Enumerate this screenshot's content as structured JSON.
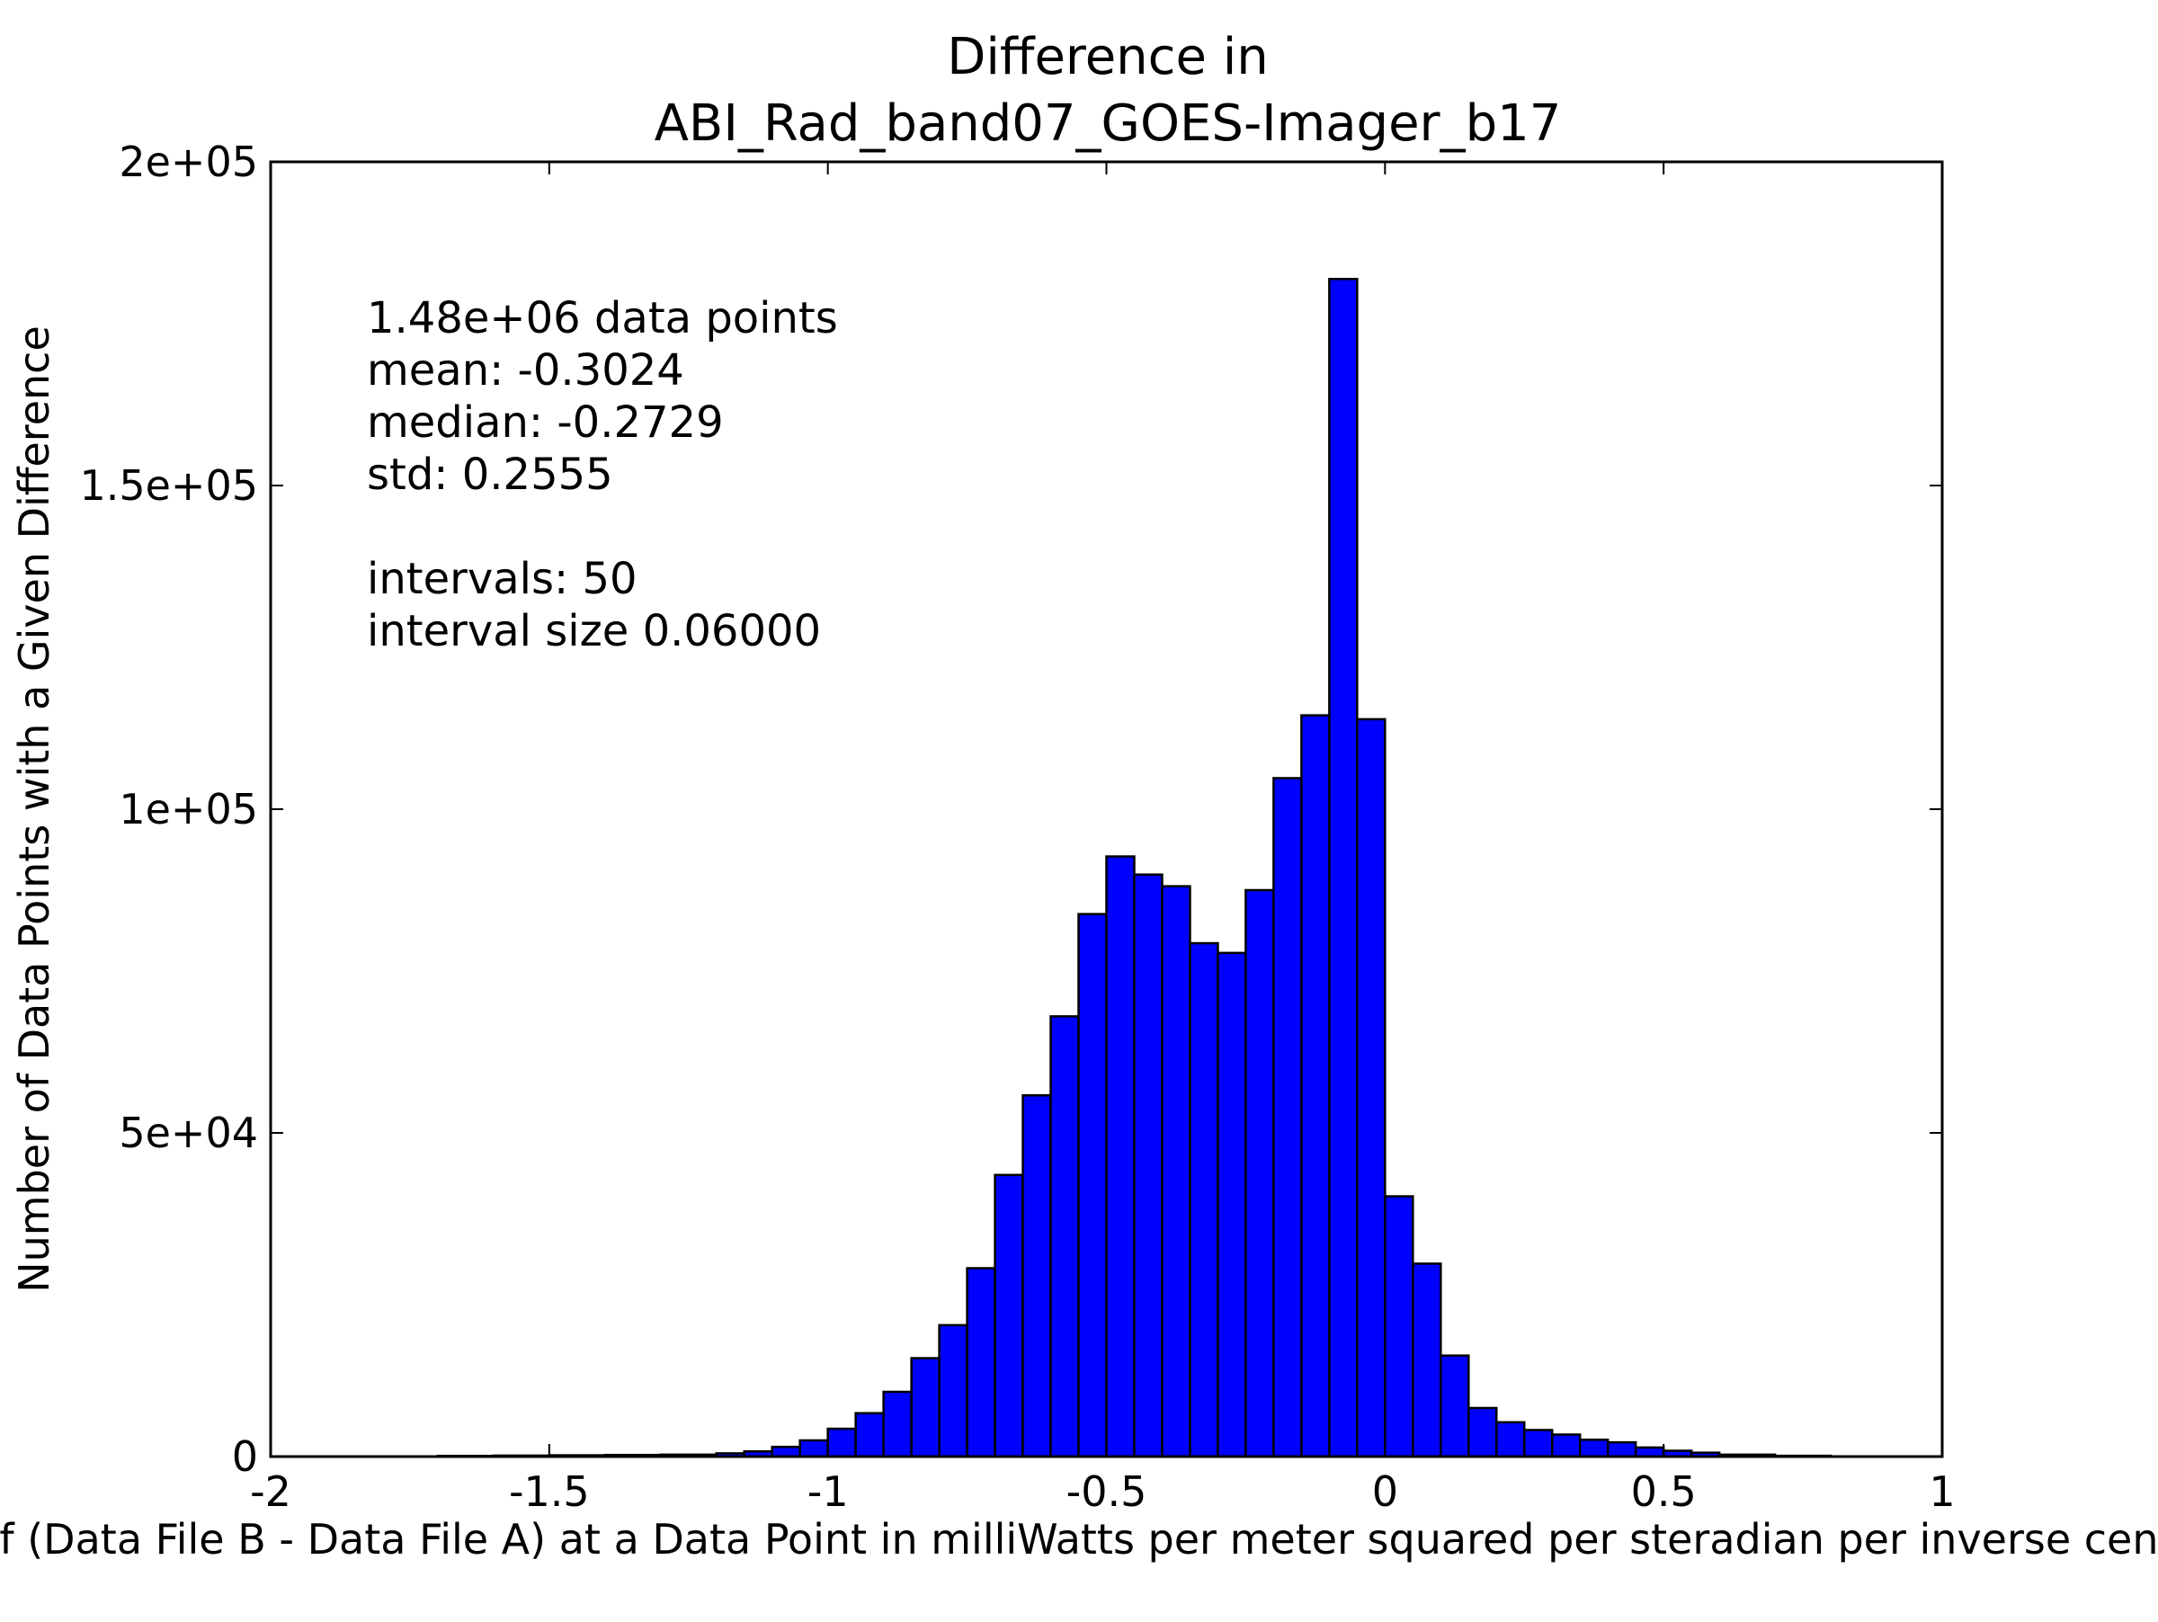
{
  "chart_data": {
    "type": "bar",
    "title_lines": [
      "Difference in",
      "ABI_Rad_band07_GOES-Imager_b17"
    ],
    "xlabel": "Value of (Data File B - Data File A) at a Data Point in milliWatts per meter squared per steradian per inverse centimeter",
    "ylabel": "Number of Data Points with a Given Difference",
    "xlim": [
      -2,
      1
    ],
    "ylim": [
      0,
      200000
    ],
    "x_ticks": [
      -2,
      -1.5,
      -1,
      -0.5,
      0,
      0.5,
      1
    ],
    "x_tick_labels": [
      "-2",
      "-1.5",
      "-1",
      "-0.5",
      "0",
      "0.5",
      "1"
    ],
    "y_ticks": [
      0,
      50000,
      100000,
      150000,
      200000
    ],
    "y_tick_labels": [
      "0",
      "5e+04",
      "1e+05",
      "1.5e+05",
      "2e+05"
    ],
    "annotation_lines": [
      "1.48e+06 data points",
      "mean: -0.3024",
      "median: -0.2729",
      "std: 0.2555",
      "",
      "intervals: 50",
      "interval size 0.06000"
    ],
    "bar_color": "#0000ff",
    "edge_color": "#000000",
    "bins": [
      {
        "start": -1.7,
        "end": -1.6,
        "value": 100
      },
      {
        "start": -1.6,
        "end": -1.5,
        "value": 150
      },
      {
        "start": -1.5,
        "end": -1.4,
        "value": 200
      },
      {
        "start": -1.4,
        "end": -1.3,
        "value": 250
      },
      {
        "start": -1.3,
        "end": -1.2,
        "value": 300
      },
      {
        "start": -1.2,
        "end": -1.15,
        "value": 500
      },
      {
        "start": -1.15,
        "end": -1.1,
        "value": 800
      },
      {
        "start": -1.1,
        "end": -1.05,
        "value": 1500
      },
      {
        "start": -1.05,
        "end": -1.0,
        "value": 2500
      },
      {
        "start": -1.0,
        "end": -0.95,
        "value": 4300
      },
      {
        "start": -0.95,
        "end": -0.9,
        "value": 6700
      },
      {
        "start": -0.9,
        "end": -0.85,
        "value": 10000
      },
      {
        "start": -0.85,
        "end": -0.8,
        "value": 15200
      },
      {
        "start": -0.8,
        "end": -0.75,
        "value": 20300
      },
      {
        "start": -0.75,
        "end": -0.7,
        "value": 29100
      },
      {
        "start": -0.7,
        "end": -0.65,
        "value": 43500
      },
      {
        "start": -0.65,
        "end": -0.6,
        "value": 55800
      },
      {
        "start": -0.6,
        "end": -0.55,
        "value": 68000
      },
      {
        "start": -0.55,
        "end": -0.5,
        "value": 83800
      },
      {
        "start": -0.5,
        "end": -0.45,
        "value": 92700
      },
      {
        "start": -0.45,
        "end": -0.4,
        "value": 89900
      },
      {
        "start": -0.4,
        "end": -0.35,
        "value": 88100
      },
      {
        "start": -0.35,
        "end": -0.3,
        "value": 79300
      },
      {
        "start": -0.3,
        "end": -0.25,
        "value": 77800
      },
      {
        "start": -0.25,
        "end": -0.2,
        "value": 87500
      },
      {
        "start": -0.2,
        "end": -0.15,
        "value": 104800
      },
      {
        "start": -0.15,
        "end": -0.1,
        "value": 114500
      },
      {
        "start": -0.1,
        "end": -0.05,
        "value": 181900
      },
      {
        "start": -0.05,
        "end": 0.0,
        "value": 113900
      },
      {
        "start": 0.0,
        "end": 0.05,
        "value": 40200
      },
      {
        "start": 0.05,
        "end": 0.1,
        "value": 29800
      },
      {
        "start": 0.1,
        "end": 0.15,
        "value": 15600
      },
      {
        "start": 0.15,
        "end": 0.2,
        "value": 7500
      },
      {
        "start": 0.2,
        "end": 0.25,
        "value": 5300
      },
      {
        "start": 0.25,
        "end": 0.3,
        "value": 4100
      },
      {
        "start": 0.3,
        "end": 0.35,
        "value": 3400
      },
      {
        "start": 0.35,
        "end": 0.4,
        "value": 2600
      },
      {
        "start": 0.4,
        "end": 0.45,
        "value": 2200
      },
      {
        "start": 0.45,
        "end": 0.5,
        "value": 1400
      },
      {
        "start": 0.5,
        "end": 0.55,
        "value": 900
      },
      {
        "start": 0.55,
        "end": 0.6,
        "value": 600
      },
      {
        "start": 0.6,
        "end": 0.7,
        "value": 300
      },
      {
        "start": 0.7,
        "end": 0.8,
        "value": 120
      }
    ]
  }
}
